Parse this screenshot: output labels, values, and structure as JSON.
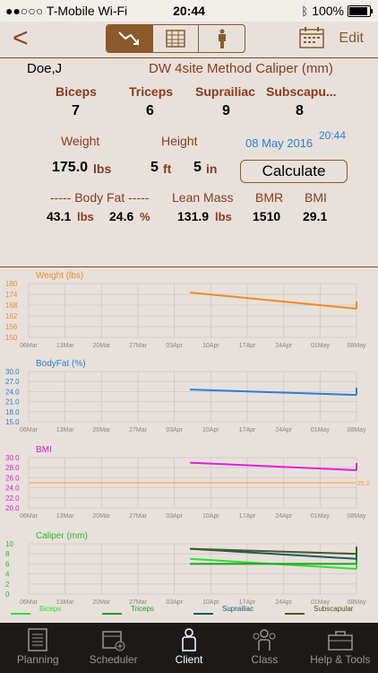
{
  "status": {
    "carrier": "●●○○○ T-Mobile Wi-Fi",
    "time": "20:44",
    "battery": "100%",
    "battery_level": 100
  },
  "nav": {
    "back": "<",
    "edit": "Edit"
  },
  "header": {
    "client": "Doe,J",
    "method": "DW 4site Method Caliper (mm)"
  },
  "sites": {
    "labels": [
      "Biceps",
      "Triceps",
      "Suprailiac",
      "Subscapu..."
    ],
    "values": [
      "7",
      "6",
      "9",
      "8"
    ]
  },
  "measure": {
    "weight_label": "Weight",
    "height_label": "Height",
    "date": "08 May 2016",
    "time": "20:44",
    "weight_value": "175.0",
    "weight_unit": "lbs",
    "height_ft": "5",
    "ft_unit": "ft",
    "height_in": "5",
    "in_unit": "in",
    "calculate": "Calculate"
  },
  "results": {
    "bodyfat_label": "----- Body Fat -----",
    "leanmass_label": "Lean Mass",
    "bmr_label": "BMR",
    "bmi_label": "BMI",
    "fat_lbs": "43.1",
    "lbs_unit": "lbs",
    "fat_pct": "24.6",
    "pct_unit": "%",
    "lean": "131.9",
    "lean_unit": "lbs",
    "bmr": "1510",
    "bmi": "29.1"
  },
  "chart_data": [
    {
      "type": "line",
      "title": "Weight (lbs)",
      "color": "#f28a1e",
      "x_ticks": [
        "06Mar",
        "13Mar",
        "20Mar",
        "27Mar",
        "03Apr",
        "10Apr",
        "17Apr",
        "24Apr",
        "01May",
        "08May"
      ],
      "ylim": [
        150,
        180
      ],
      "y_ticks": [
        "150",
        "156",
        "162",
        "168",
        "174",
        "180"
      ],
      "series": [
        {
          "x": [
            "06Apr",
            "08May"
          ],
          "values": [
            175.0,
            166.0
          ]
        }
      ]
    },
    {
      "type": "line",
      "title": "BodyFat (%)",
      "color": "#2a7fd4",
      "x_ticks": [
        "06Mar",
        "13Mar",
        "20Mar",
        "27Mar",
        "03Apr",
        "10Apr",
        "17Apr",
        "24Apr",
        "01May",
        "08May"
      ],
      "ylim": [
        15.0,
        30.0
      ],
      "y_ticks": [
        "15.0",
        "18.0",
        "21.0",
        "24.0",
        "27.0",
        "30.0"
      ],
      "series": [
        {
          "x": [
            "06Apr",
            "08May"
          ],
          "values": [
            24.6,
            23.0
          ]
        }
      ]
    },
    {
      "type": "line",
      "title": "BMI",
      "color": "#e020e0",
      "x_ticks": [
        "06Mar",
        "13Mar",
        "20Mar",
        "27Mar",
        "03Apr",
        "10Apr",
        "17Apr",
        "24Apr",
        "01May",
        "08May"
      ],
      "ylim": [
        20.0,
        30.0
      ],
      "y_ticks": [
        "20.0",
        "22.0",
        "24.0",
        "26.0",
        "28.0",
        "30.0"
      ],
      "reference_line": {
        "value": 25.0,
        "label": "25.0",
        "color": "#f0a030"
      },
      "series": [
        {
          "x": [
            "06Apr",
            "08May"
          ],
          "values": [
            29.0,
            27.5
          ]
        }
      ]
    },
    {
      "type": "line",
      "title": "Caliper (mm)",
      "x_ticks": [
        "06Mar",
        "13Mar",
        "20Mar",
        "27Mar",
        "03Apr",
        "10Apr",
        "17Apr",
        "24Apr",
        "01May",
        "08May"
      ],
      "ylim": [
        0,
        10
      ],
      "y_ticks": [
        "0",
        "2",
        "4",
        "6",
        "8",
        "10"
      ],
      "series": [
        {
          "name": "Biceps",
          "color": "#30e030",
          "x": [
            "06Apr",
            "08May"
          ],
          "values": [
            7,
            5
          ]
        },
        {
          "name": "Triceps",
          "color": "#20a020",
          "x": [
            "06Apr",
            "08May"
          ],
          "values": [
            6,
            6
          ]
        },
        {
          "name": "Suprailiac",
          "color": "#1a5a6a",
          "x": [
            "06Apr",
            "08May"
          ],
          "values": [
            9,
            7
          ]
        },
        {
          "name": "Subscapular",
          "color": "#4a5a20",
          "x": [
            "06Apr",
            "08May"
          ],
          "values": [
            9,
            8
          ]
        }
      ]
    }
  ],
  "tabs": [
    {
      "label": "Planning",
      "icon": "planning-icon"
    },
    {
      "label": "Scheduler",
      "icon": "scheduler-icon"
    },
    {
      "label": "Client",
      "icon": "client-icon",
      "active": true
    },
    {
      "label": "Class",
      "icon": "class-icon"
    },
    {
      "label": "Help & Tools",
      "icon": "toolbox-icon"
    }
  ]
}
